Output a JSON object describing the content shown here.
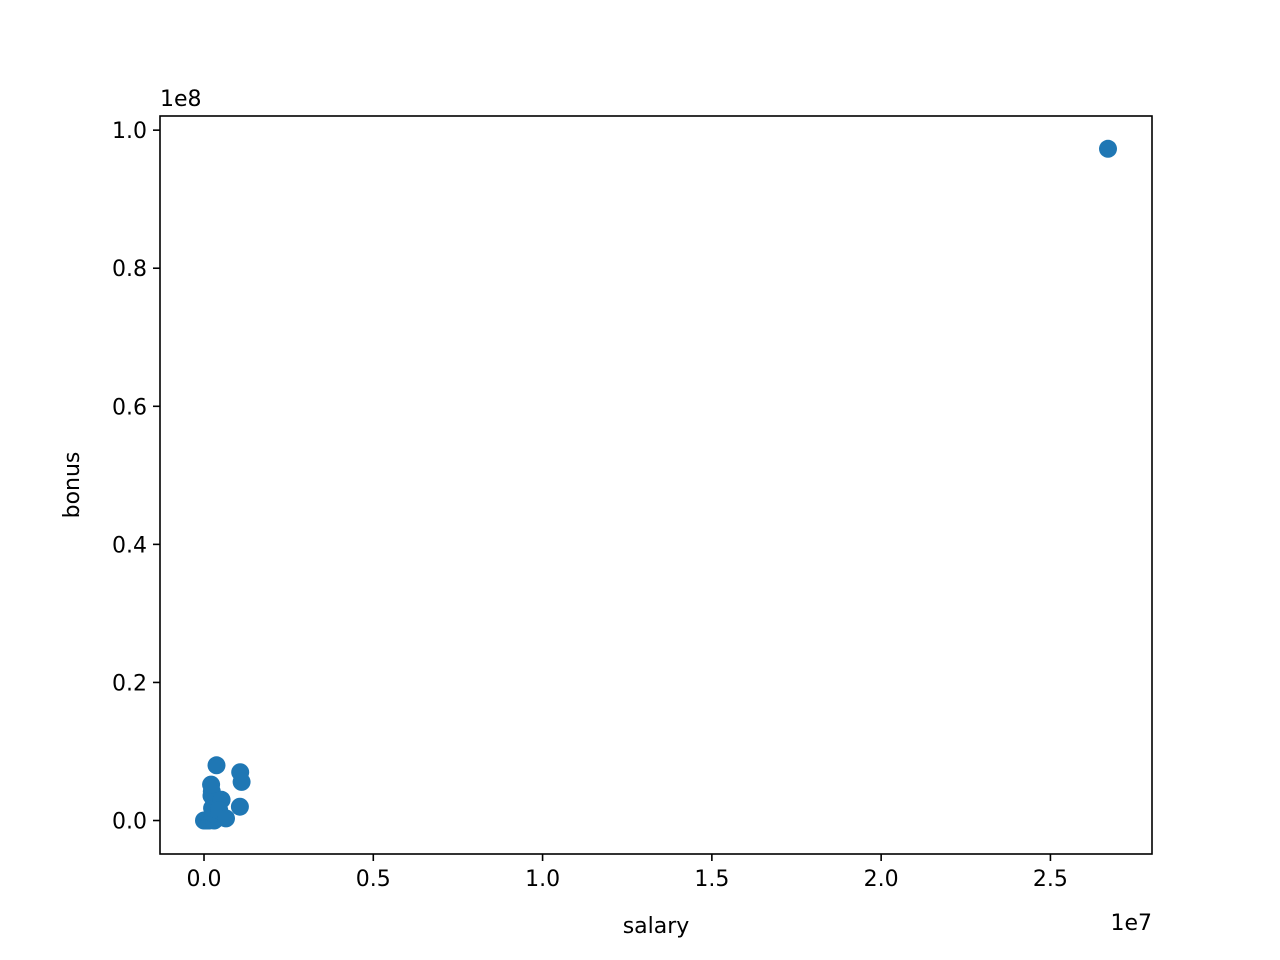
{
  "chart_data": {
    "type": "scatter",
    "xlabel": "salary",
    "ylabel": "bonus",
    "x_offset_label": "1e7",
    "y_offset_label": "1e8",
    "xlim": [
      -1300000.0,
      28000000.0
    ],
    "ylim": [
      -4850000.0,
      102050000.0
    ],
    "x_ticks": [
      {
        "value": 0,
        "label": "0.0"
      },
      {
        "value": 5000000,
        "label": "0.5"
      },
      {
        "value": 10000000,
        "label": "1.0"
      },
      {
        "value": 15000000,
        "label": "1.5"
      },
      {
        "value": 20000000,
        "label": "2.0"
      },
      {
        "value": 25000000,
        "label": "2.5"
      }
    ],
    "y_ticks": [
      {
        "value": 0,
        "label": "0.0"
      },
      {
        "value": 20000000,
        "label": "0.2"
      },
      {
        "value": 40000000,
        "label": "0.4"
      },
      {
        "value": 60000000,
        "label": "0.6"
      },
      {
        "value": 80000000,
        "label": "0.8"
      },
      {
        "value": 100000000,
        "label": "1.0"
      }
    ],
    "grid": false,
    "legend": "none",
    "colors": {
      "marker": "#1f77b4",
      "axes": "#000000"
    },
    "points": [
      {
        "x": 0,
        "y": 0
      },
      {
        "x": 50000,
        "y": 0
      },
      {
        "x": 100000,
        "y": 0
      },
      {
        "x": 150000,
        "y": 0
      },
      {
        "x": 200000,
        "y": 100000
      },
      {
        "x": 250000,
        "y": 300000
      },
      {
        "x": 300000,
        "y": 0
      },
      {
        "x": 350000,
        "y": 200000
      },
      {
        "x": 270000,
        "y": 1000000
      },
      {
        "x": 240000,
        "y": 1800000
      },
      {
        "x": 300000,
        "y": 2500000
      },
      {
        "x": 220000,
        "y": 3600000
      },
      {
        "x": 230000,
        "y": 4200000
      },
      {
        "x": 210000,
        "y": 5200000
      },
      {
        "x": 370000,
        "y": 8000000
      },
      {
        "x": 520000,
        "y": 3000000
      },
      {
        "x": 450000,
        "y": 1500000
      },
      {
        "x": 650000,
        "y": 300000
      },
      {
        "x": 1060000,
        "y": 2000000
      },
      {
        "x": 1070000,
        "y": 7000000
      },
      {
        "x": 1110000,
        "y": 5600000
      },
      {
        "x": 26700000,
        "y": 97300000
      }
    ]
  }
}
